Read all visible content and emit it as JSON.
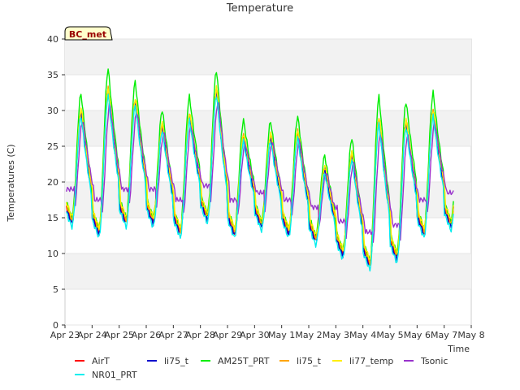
{
  "chart_data": {
    "type": "line",
    "title": "Temperature",
    "xlabel": "Time",
    "ylabel": "Temperatures (C)",
    "site_label": "BC_met",
    "x_ticks": [
      "Apr 23",
      "Apr 24",
      "Apr 25",
      "Apr 26",
      "Apr 27",
      "Apr 28",
      "Apr 29",
      "Apr 30",
      "May 1",
      "May 2",
      "May 3",
      "May 4",
      "May 5",
      "May 6",
      "May 7",
      "May 8"
    ],
    "xlim_days": [
      0,
      15
    ],
    "ylim": [
      0,
      40
    ],
    "y_ticks": [
      0,
      5,
      10,
      15,
      20,
      25,
      30,
      35,
      40
    ],
    "grid": true,
    "legend_position": "bottom",
    "daily_extremes": {
      "days": [
        "Apr 23",
        "Apr 24",
        "Apr 25",
        "Apr 26",
        "Apr 27",
        "Apr 28",
        "Apr 29",
        "Apr 30",
        "May 1",
        "May 2",
        "May 3",
        "May 4",
        "May 5",
        "May 6",
        "May 7"
      ],
      "min": [
        14.5,
        13.0,
        14.5,
        14.5,
        13.0,
        15.0,
        13.0,
        14.0,
        13.0,
        12.0,
        10.0,
        8.5,
        9.5,
        13.0,
        14.0
      ],
      "max": [
        30.0,
        33.0,
        31.5,
        28.0,
        29.5,
        33.0,
        26.5,
        26.5,
        27.0,
        22.0,
        24.0,
        29.0,
        28.5,
        30.0,
        null
      ]
    },
    "series": [
      {
        "name": "AirT",
        "color": "#ff0000",
        "offset": 0.0,
        "scale": 1.0,
        "lag": 0.0
      },
      {
        "name": "li75_t",
        "color": "#0000cc",
        "offset": -0.3,
        "scale": 1.0,
        "lag": 0.0
      },
      {
        "name": "AM25T_PRT",
        "color": "#00ee00",
        "offset": 0.5,
        "scale": 1.12,
        "lag": 0.0
      },
      {
        "name": "li75_t",
        "color": "#ffa500",
        "offset": 0.2,
        "scale": 1.0,
        "lag": 0.01
      },
      {
        "name": "li77_temp",
        "color": "#ffee00",
        "offset": 0.6,
        "scale": 0.98,
        "lag": 0.01
      },
      {
        "name": "Tsonic",
        "color": "#9933cc",
        "offset": 1.0,
        "scale": 0.85,
        "lag": 0.06,
        "min_floor": 4.5
      },
      {
        "name": "NR01_PRT",
        "color": "#00eeee",
        "offset": -0.8,
        "scale": 1.0,
        "lag": 0.0
      }
    ]
  }
}
